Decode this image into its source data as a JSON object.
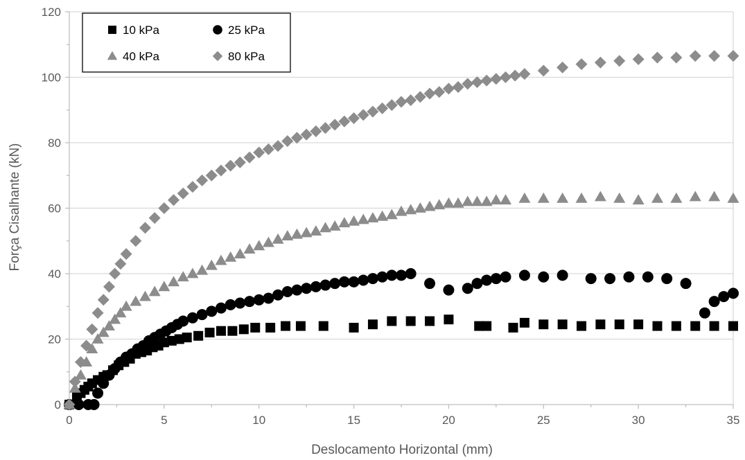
{
  "colors": {
    "dark_series": "#000000",
    "gray_series": "#8c8c8c",
    "gridline": "#d9d9d9",
    "axis_line": "#bfbfbf",
    "text": "#595959"
  },
  "chart_data": {
    "type": "scatter",
    "title": "",
    "xlabel": "Deslocamento Horizontal (mm)",
    "ylabel": "Força Cisalhante (kN)",
    "xlim": [
      0,
      35
    ],
    "ylim": [
      0,
      120
    ],
    "x_ticks": [
      0,
      5,
      10,
      15,
      20,
      25,
      30,
      35
    ],
    "y_ticks": [
      0,
      20,
      40,
      60,
      80,
      100,
      120
    ],
    "grid": "horizontal",
    "legend_position": "top-left",
    "series": [
      {
        "name": "10 kPa",
        "marker": "square",
        "color": "#000000",
        "x": [
          0,
          0.4,
          0.6,
          0.8,
          1.0,
          1.2,
          1.5,
          1.8,
          2.0,
          2.3,
          2.6,
          2.9,
          3.2,
          3.5,
          3.8,
          4.1,
          4.4,
          4.7,
          5.0,
          5.4,
          5.8,
          6.2,
          6.8,
          7.4,
          8.0,
          8.6,
          9.2,
          9.8,
          10.6,
          11.4,
          12.2,
          13.4,
          15.0,
          16.0,
          17.0,
          18.0,
          19.0,
          20.0,
          21.6,
          22.0,
          23.4,
          24.0,
          25.0,
          26.0,
          27.0,
          28.0,
          29.0,
          30.0,
          31.0,
          32.0,
          33.0,
          34.0,
          35.0
        ],
        "y": [
          0,
          2.5,
          3.5,
          4.5,
          5.5,
          6.5,
          7.5,
          8.5,
          9.0,
          10.5,
          12.0,
          13.0,
          14.0,
          15.5,
          16.0,
          16.5,
          17.5,
          18.0,
          19.0,
          19.5,
          20.0,
          20.5,
          21.0,
          22.0,
          22.5,
          22.5,
          23.0,
          23.5,
          23.5,
          24.0,
          24.0,
          24.0,
          23.5,
          24.5,
          25.5,
          25.5,
          25.5,
          26.0,
          24.0,
          24.0,
          23.5,
          25.0,
          24.5,
          24.5,
          24.0,
          24.5,
          24.5,
          24.5,
          24.0,
          24.0,
          24.0,
          24.0,
          24.0
        ]
      },
      {
        "name": "25 kPa",
        "marker": "circle",
        "color": "#000000",
        "x": [
          0,
          0.5,
          1.0,
          1.3,
          1.5,
          1.8,
          2.1,
          2.4,
          2.7,
          3.0,
          3.3,
          3.6,
          3.9,
          4.2,
          4.5,
          4.8,
          5.1,
          5.4,
          5.7,
          6.0,
          6.5,
          7.0,
          7.5,
          8.0,
          8.5,
          9.0,
          9.5,
          10.0,
          10.5,
          11.0,
          11.5,
          12.0,
          12.5,
          13.0,
          13.5,
          14.0,
          14.5,
          15.0,
          15.5,
          16.0,
          16.5,
          17.0,
          17.5,
          18.0,
          19.0,
          20.0,
          21.0,
          21.5,
          22.0,
          22.5,
          23.0,
          24.0,
          25.0,
          26.0,
          27.5,
          28.5,
          29.5,
          30.5,
          31.5,
          32.5,
          33.5,
          34.0,
          34.5,
          35.0
        ],
        "y": [
          0,
          0,
          0,
          0,
          3.5,
          6.5,
          9.0,
          11.0,
          13.0,
          14.5,
          15.5,
          17.0,
          18.0,
          19.5,
          20.5,
          21.5,
          22.5,
          23.5,
          24.5,
          25.5,
          26.5,
          27.5,
          28.5,
          29.5,
          30.5,
          31.0,
          31.5,
          32.0,
          32.5,
          33.5,
          34.5,
          35.0,
          35.5,
          36.0,
          36.5,
          37.0,
          37.5,
          37.5,
          38.0,
          38.5,
          39.0,
          39.5,
          39.5,
          40.0,
          37.0,
          35.0,
          35.5,
          37.0,
          38.0,
          38.5,
          39.0,
          39.5,
          39.0,
          39.5,
          38.5,
          38.5,
          39.0,
          39.0,
          38.5,
          37.0,
          28.0,
          31.5,
          33.0,
          34.0
        ]
      },
      {
        "name": "40 kPa",
        "marker": "triangle",
        "color": "#8c8c8c",
        "x": [
          0,
          0.3,
          0.6,
          0.9,
          1.2,
          1.5,
          1.8,
          2.1,
          2.4,
          2.7,
          3.0,
          3.5,
          4.0,
          4.5,
          5.0,
          5.5,
          6.0,
          6.5,
          7.0,
          7.5,
          8.0,
          8.5,
          9.0,
          9.5,
          10.0,
          10.5,
          11.0,
          11.5,
          12.0,
          12.5,
          13.0,
          13.5,
          14.0,
          14.5,
          15.0,
          15.5,
          16.0,
          16.5,
          17.0,
          17.5,
          18.0,
          18.5,
          19.0,
          19.5,
          20.0,
          20.5,
          21.0,
          21.5,
          22.0,
          22.5,
          23.0,
          24.0,
          25.0,
          26.0,
          27.0,
          28.0,
          29.0,
          30.0,
          31.0,
          32.0,
          33.0,
          34.0,
          35.0
        ],
        "y": [
          0,
          5,
          9,
          13,
          17,
          20,
          22,
          24,
          26,
          28,
          30,
          31.5,
          33,
          34.5,
          36,
          37.5,
          39,
          40,
          41,
          42.5,
          44,
          45,
          46,
          47.5,
          48.5,
          49.5,
          50.5,
          51.5,
          52,
          52.5,
          53,
          54,
          54.5,
          55.5,
          56,
          56.5,
          57,
          57.5,
          58,
          59,
          59.5,
          60,
          60.5,
          61,
          61.5,
          61.5,
          62,
          62,
          62,
          62.5,
          62.5,
          63,
          63,
          63,
          63,
          63.5,
          63,
          62.5,
          63,
          63,
          63.5,
          63.5,
          63
        ]
      },
      {
        "name": "80 kPa",
        "marker": "diamond",
        "color": "#8c8c8c",
        "x": [
          0,
          0.3,
          0.6,
          0.9,
          1.2,
          1.5,
          1.8,
          2.1,
          2.4,
          2.7,
          3.0,
          3.5,
          4.0,
          4.5,
          5.0,
          5.5,
          6.0,
          6.5,
          7.0,
          7.5,
          8.0,
          8.5,
          9.0,
          9.5,
          10.0,
          10.5,
          11.0,
          11.5,
          12.0,
          12.5,
          13.0,
          13.5,
          14.0,
          14.5,
          15.0,
          15.5,
          16.0,
          16.5,
          17.0,
          17.5,
          18.0,
          18.5,
          19.0,
          19.5,
          20.0,
          20.5,
          21.0,
          21.5,
          22.0,
          22.5,
          23.0,
          23.5,
          24.0,
          25.0,
          26.0,
          27.0,
          28.0,
          29.0,
          30.0,
          31.0,
          32.0,
          33.0,
          34.0,
          35.0
        ],
        "y": [
          0,
          7,
          13,
          18,
          23,
          28,
          32,
          36,
          40,
          43,
          46,
          50,
          54,
          57,
          60,
          62.5,
          64.5,
          66.5,
          68.5,
          70,
          71.5,
          73,
          74,
          75.5,
          77,
          78,
          79,
          80.5,
          81.5,
          82.5,
          83.5,
          84.5,
          85.5,
          86.5,
          87.5,
          88.5,
          89.5,
          90.5,
          91.5,
          92.5,
          93,
          94,
          95,
          95.5,
          96.5,
          97,
          98,
          98.5,
          99,
          99.5,
          100,
          100.5,
          101,
          102,
          103,
          104,
          104.5,
          105,
          105.5,
          106,
          106,
          106.5,
          106.5,
          106.5
        ]
      }
    ]
  }
}
